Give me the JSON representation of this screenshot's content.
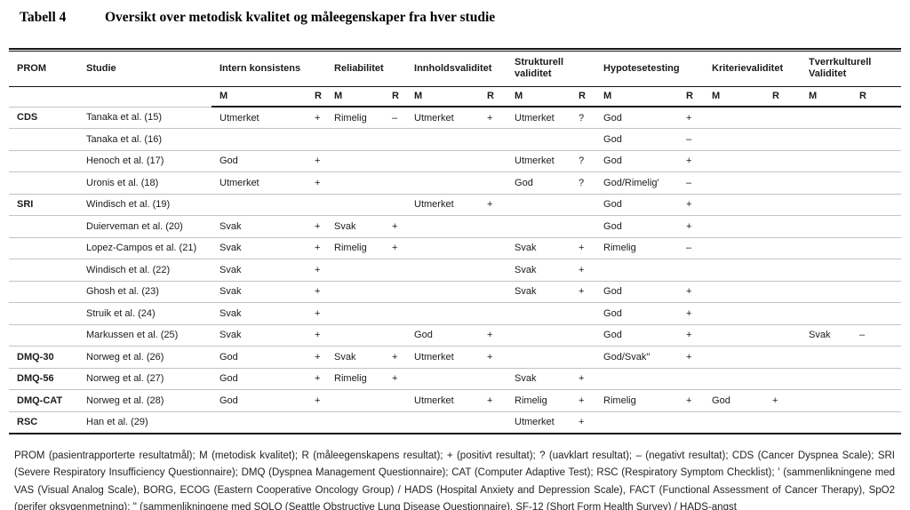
{
  "title": {
    "label": "Tabell 4",
    "heading": "Oversikt over metodisk kvalitet og måleegenskaper fra hver studie"
  },
  "table": {
    "headers": {
      "prom": "PROM",
      "studie": "Studie"
    },
    "groups": [
      "Intern konsistens",
      "Reliabilitet",
      "Innholdsvaliditet",
      "Strukturell validitet",
      "Hypotesetesting",
      "Kriterievaliditet",
      "Tverrkulturell Validitet"
    ],
    "subheader": {
      "m": "M",
      "r": "R"
    },
    "rows": [
      {
        "prom": "CDS",
        "studie": "Tanaka et al. (15)",
        "cells": [
          "Utmerket",
          "+",
          "Rimelig",
          "–",
          "Utmerket",
          "+",
          "Utmerket",
          "?",
          "God",
          "+",
          "",
          "",
          "",
          ""
        ]
      },
      {
        "prom": "",
        "studie": "Tanaka et al. (16)",
        "cells": [
          "",
          "",
          "",
          "",
          "",
          "",
          "",
          "",
          "God",
          "–",
          "",
          "",
          "",
          ""
        ]
      },
      {
        "prom": "",
        "studie": "Henoch et al. (17)",
        "cells": [
          "God",
          "+",
          "",
          "",
          "",
          "",
          "Utmerket",
          "?",
          "God",
          "+",
          "",
          "",
          "",
          ""
        ]
      },
      {
        "prom": "",
        "studie": "Uronis et al. (18)",
        "cells": [
          "Utmerket",
          "+",
          "",
          "",
          "",
          "",
          "God",
          "?",
          "God/Rimelig'",
          "–",
          "",
          "",
          "",
          ""
        ]
      },
      {
        "prom": "SRI",
        "studie": "Windisch et al. (19)",
        "cells": [
          "",
          "",
          "",
          "",
          "Utmerket",
          "+",
          "",
          "",
          "God",
          "+",
          "",
          "",
          "",
          ""
        ]
      },
      {
        "prom": "",
        "studie": "Duierveman et al. (20)",
        "cells": [
          "Svak",
          "+",
          "Svak",
          "+",
          "",
          "",
          "",
          "",
          "God",
          "+",
          "",
          "",
          "",
          ""
        ]
      },
      {
        "prom": "",
        "studie": "Lopez-Campos et al. (21)",
        "cells": [
          "Svak",
          "+",
          "Rimelig",
          "+",
          "",
          "",
          "Svak",
          "+",
          "Rimelig",
          "–",
          "",
          "",
          "",
          ""
        ]
      },
      {
        "prom": "",
        "studie": "Windisch et al. (22)",
        "cells": [
          "Svak",
          "+",
          "",
          "",
          "",
          "",
          "Svak",
          "+",
          "",
          "",
          "",
          "",
          "",
          ""
        ]
      },
      {
        "prom": "",
        "studie": "Ghosh et al. (23)",
        "cells": [
          "Svak",
          "+",
          "",
          "",
          "",
          "",
          "Svak",
          "+",
          "God",
          "+",
          "",
          "",
          "",
          ""
        ]
      },
      {
        "prom": "",
        "studie": "Struik et al. (24)",
        "cells": [
          "Svak",
          "+",
          "",
          "",
          "",
          "",
          "",
          "",
          "God",
          "+",
          "",
          "",
          "",
          ""
        ]
      },
      {
        "prom": "",
        "studie": "Markussen et al. (25)",
        "cells": [
          "Svak",
          "+",
          "",
          "",
          "God",
          "+",
          "",
          "",
          "God",
          "+",
          "",
          "",
          "Svak",
          "–"
        ]
      },
      {
        "prom": "DMQ-30",
        "studie": "Norweg et al. (26)",
        "cells": [
          "God",
          "+",
          "Svak",
          "+",
          "Utmerket",
          "+",
          "",
          "",
          "God/Svak''",
          "+",
          "",
          "",
          "",
          ""
        ]
      },
      {
        "prom": "DMQ-56",
        "studie": "Norweg et al. (27)",
        "cells": [
          "God",
          "+",
          "Rimelig",
          "+",
          "",
          "",
          "Svak",
          "+",
          "",
          "",
          "",
          "",
          "",
          ""
        ]
      },
      {
        "prom": "DMQ-CAT",
        "studie": "Norweg et al. (28)",
        "cells": [
          "God",
          "+",
          "",
          "",
          "Utmerket",
          "+",
          "Rimelig",
          "+",
          "Rimelig",
          "+",
          "God",
          "+",
          "",
          ""
        ]
      },
      {
        "prom": "RSC",
        "studie": "Han et al. (29)",
        "cells": [
          "",
          "",
          "",
          "",
          "",
          "",
          "Utmerket",
          "+",
          "",
          "",
          "",
          "",
          "",
          ""
        ]
      }
    ]
  },
  "footnote": "PROM (pasientrapporterte resultatmål); M (metodisk kvalitet); R (måleegenskapens resultat); + (positivt resultat); ? (uavklart resultat); – (negativt resultat); CDS (Cancer Dyspnea Scale); SRI (Severe Respiratory Insufficiency Questionnaire); DMQ (Dyspnea Management Questionnaire); CAT (Computer Adaptive Test); RSC (Respiratory Symptom Checklist); ' (sammenlikningene med VAS (Visual Analog Scale), BORG, ECOG (Eastern Cooperative Oncology Group) / HADS (Hospital Anxiety and Depression Scale), FACT (Functional Assessment of Cancer Therapy), SpO2 (perifer oksygenmetning); '' (sammenlikningene med SOLQ (Seattle Obstructive Lung Disease Questionnaire), SF-12 (Short Form Health Survey) / HADS-angst"
}
